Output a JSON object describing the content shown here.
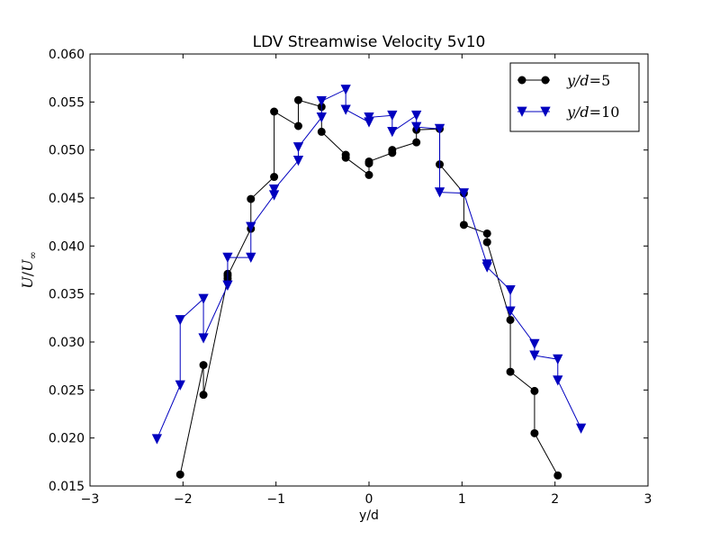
{
  "chart_data": {
    "type": "line",
    "title": "LDV Streamwise Velocity 5v10",
    "xlabel": "y/d",
    "ylabel": "U/U∞",
    "xlim": [
      -3,
      3
    ],
    "ylim": [
      0.015,
      0.06
    ],
    "xticks": [
      "−3",
      "−2",
      "−1",
      "0",
      "1",
      "2",
      "3"
    ],
    "xtick_values": [
      -3,
      -2,
      -1,
      0,
      1,
      2,
      3
    ],
    "yticks": [
      "0.015",
      "0.020",
      "0.025",
      "0.030",
      "0.035",
      "0.040",
      "0.045",
      "0.050",
      "0.055",
      "0.060"
    ],
    "ytick_values": [
      0.015,
      0.02,
      0.025,
      0.03,
      0.035,
      0.04,
      0.045,
      0.05,
      0.055,
      0.06
    ],
    "grid": false,
    "legend_position": "top-right",
    "series": [
      {
        "name": "y/d=5",
        "color": "#000000",
        "marker": "circle",
        "x": [
          -2.03,
          -1.78,
          -1.78,
          -1.52,
          -1.52,
          -1.52,
          -1.27,
          -1.27,
          -1.02,
          -1.02,
          -0.76,
          -0.76,
          -0.51,
          -0.51,
          -0.25,
          -0.25,
          0.0,
          0.0,
          0.0,
          0.25,
          0.25,
          0.51,
          0.51,
          0.76,
          0.76,
          1.02,
          1.02,
          1.27,
          1.27,
          1.52,
          1.52,
          1.78,
          1.78,
          2.03
        ],
        "y": [
          0.0162,
          0.0276,
          0.0245,
          0.0366,
          0.0371,
          0.0369,
          0.0418,
          0.0449,
          0.0472,
          0.054,
          0.0525,
          0.0552,
          0.0545,
          0.0519,
          0.0495,
          0.0492,
          0.0474,
          0.0486,
          0.0488,
          0.0497,
          0.05,
          0.0508,
          0.0521,
          0.0522,
          0.0485,
          0.0455,
          0.0422,
          0.0413,
          0.0404,
          0.0323,
          0.0269,
          0.0249,
          0.0205,
          0.0161
        ]
      },
      {
        "name": "y/d=10",
        "color": "#0000bf",
        "marker": "triangle-down",
        "x": [
          -2.28,
          -2.03,
          -2.03,
          -1.78,
          -1.78,
          -1.52,
          -1.52,
          -1.27,
          -1.27,
          -1.02,
          -1.02,
          -0.76,
          -0.76,
          -0.51,
          -0.51,
          -0.25,
          -0.25,
          0.0,
          0.0,
          0.25,
          0.25,
          0.51,
          0.51,
          0.76,
          0.76,
          1.02,
          1.27,
          1.27,
          1.52,
          1.52,
          1.78,
          1.78,
          2.03,
          2.03,
          2.28
        ],
        "y": [
          0.0199,
          0.0255,
          0.0323,
          0.0345,
          0.0304,
          0.0359,
          0.0388,
          0.0388,
          0.042,
          0.0453,
          0.0459,
          0.0489,
          0.0503,
          0.0534,
          0.0551,
          0.0563,
          0.0542,
          0.0529,
          0.0534,
          0.0536,
          0.0519,
          0.0536,
          0.0524,
          0.0522,
          0.0456,
          0.0455,
          0.0381,
          0.0378,
          0.0354,
          0.0332,
          0.0298,
          0.0286,
          0.0282,
          0.026,
          0.021
        ]
      }
    ]
  }
}
